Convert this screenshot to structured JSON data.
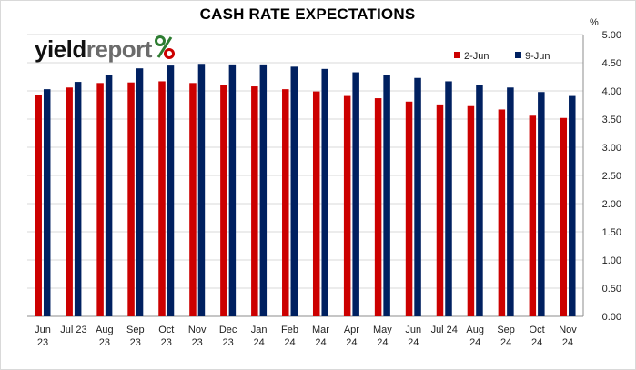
{
  "chart_data": {
    "type": "bar",
    "title": "CASH RATE EXPECTATIONS",
    "ylabel": "%",
    "ylim": [
      0,
      5
    ],
    "yticks": [
      "0.00",
      "0.50",
      "1.00",
      "1.50",
      "2.00",
      "2.50",
      "3.00",
      "3.50",
      "4.00",
      "4.50",
      "5.00"
    ],
    "grid": true,
    "legend_position": "top-right",
    "categories": [
      [
        "Jun",
        "23"
      ],
      [
        "Jul 23"
      ],
      [
        "Aug",
        "23"
      ],
      [
        "Sep",
        "23"
      ],
      [
        "Oct",
        "23"
      ],
      [
        "Nov",
        "23"
      ],
      [
        "Dec",
        "23"
      ],
      [
        "Jan",
        "24"
      ],
      [
        "Feb",
        "24"
      ],
      [
        "Mar",
        "24"
      ],
      [
        "Apr",
        "24"
      ],
      [
        "May",
        "24"
      ],
      [
        "Jun",
        "24"
      ],
      [
        "Jul 24"
      ],
      [
        "Aug",
        "24"
      ],
      [
        "Sep",
        "24"
      ],
      [
        "Oct",
        "24"
      ],
      [
        "Nov",
        "24"
      ]
    ],
    "series": [
      {
        "name": "2-Jun",
        "color": "#cc0000",
        "values": [
          3.93,
          4.06,
          4.14,
          4.15,
          4.17,
          4.14,
          4.1,
          4.08,
          4.03,
          3.99,
          3.91,
          3.87,
          3.81,
          3.76,
          3.73,
          3.67,
          3.56,
          3.52
        ]
      },
      {
        "name": "9-Jun",
        "color": "#002060",
        "values": [
          4.03,
          4.16,
          4.29,
          4.4,
          4.45,
          4.48,
          4.47,
          4.47,
          4.43,
          4.39,
          4.33,
          4.28,
          4.23,
          4.17,
          4.11,
          4.06,
          3.98,
          3.91
        ]
      }
    ]
  },
  "logo": {
    "part1": "yield",
    "part2": "report",
    "brand_colors": [
      "#2e7d32",
      "#cc0000"
    ]
  }
}
